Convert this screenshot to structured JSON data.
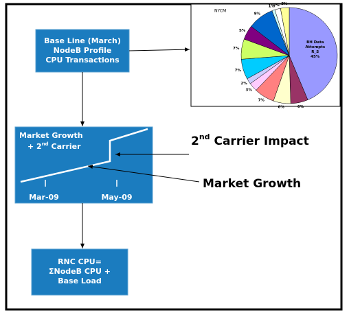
{
  "base_line_box": {
    "lines": [
      "Base Line (March)",
      "NodeB Profile",
      "CPU Transactions"
    ]
  },
  "market_growth_box": {
    "line1": "Market Growth",
    "line2": [
      "+ 2",
      "nd",
      " Carrier"
    ],
    "dates": [
      "Mar-09",
      "May-09"
    ]
  },
  "rnc_box": {
    "lines": [
      "RNC CPU=",
      "ΣNodeB CPU +",
      "Base Load"
    ]
  },
  "annotations": {
    "carrier_impact": [
      "2",
      "nd",
      " Carrier Impact"
    ],
    "market_growth": "Market Growth"
  },
  "pie": {
    "type": "pie",
    "title": "NYCM",
    "slice_name": [
      "BH Data",
      "Attempts",
      "R_S"
    ],
    "values": [
      45,
      6,
      6,
      7,
      3,
      2,
      7,
      7,
      5,
      9,
      1,
      2,
      3
    ],
    "value_labels": [
      "45%",
      "6%",
      "6%",
      "7%",
      "3%",
      "2%",
      "7%",
      "7%",
      "5%",
      "9%",
      "1%",
      "2%",
      "3%"
    ],
    "colors": [
      "#9999ff",
      "#993366",
      "#ffffcc",
      "#ff8080",
      "#ffccff",
      "#ccccff",
      "#00ccff",
      "#ccff66",
      "#800080",
      "#0066cc",
      "#ccffff",
      "#ffffff",
      "#ffff99"
    ]
  }
}
